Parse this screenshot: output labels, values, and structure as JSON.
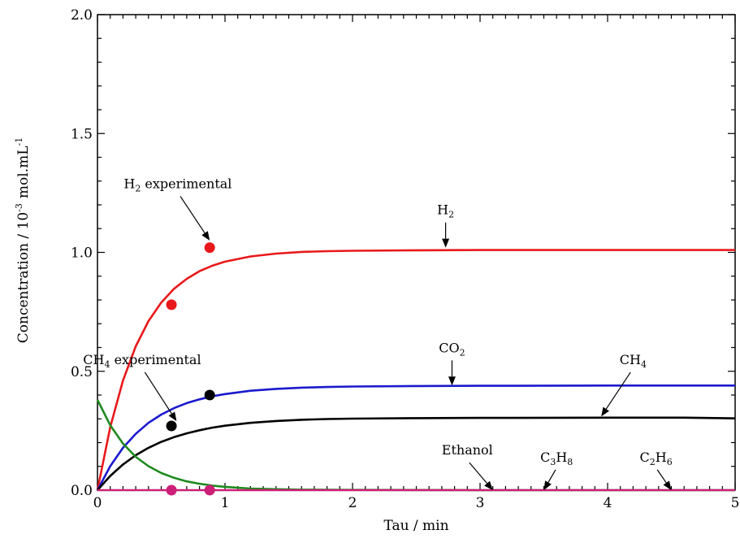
{
  "chart_data": {
    "type": "line",
    "xlabel": "Tau / min",
    "ylabel": {
      "main": "Concentration / 10",
      "sup": "-3",
      "unit": "mol.mL",
      "unit_sup": "-1"
    },
    "xlim": [
      0,
      5
    ],
    "ylim": [
      0,
      2.0
    ],
    "xticks": [
      0,
      1,
      2,
      3,
      4,
      5
    ],
    "xtick_labels": [
      "0",
      "1",
      "2",
      "3",
      "4",
      "5"
    ],
    "yticks": [
      0,
      0.5,
      1.0,
      1.5,
      2.0
    ],
    "ytick_labels": [
      "0.0",
      "0.5",
      "1.0",
      "1.5",
      "2.0"
    ],
    "grid": false,
    "series": [
      {
        "color": "#e8191b",
        "points": [
          [
            0,
            0
          ],
          [
            0.1,
            0.265
          ],
          [
            0.2,
            0.461
          ],
          [
            0.3,
            0.605
          ],
          [
            0.4,
            0.711
          ],
          [
            0.5,
            0.789
          ],
          [
            0.6,
            0.847
          ],
          [
            0.7,
            0.889
          ],
          [
            0.8,
            0.921
          ],
          [
            0.9,
            0.944
          ],
          [
            1.0,
            0.961
          ],
          [
            1.2,
            0.983
          ],
          [
            1.4,
            0.995
          ],
          [
            1.6,
            1.002
          ],
          [
            1.8,
            1.005
          ],
          [
            2.0,
            1.007
          ],
          [
            2.5,
            1.009
          ],
          [
            3.0,
            1.01
          ],
          [
            4.0,
            1.01
          ],
          [
            5.0,
            1.01
          ]
        ]
      },
      {
        "color": "#1a1acd",
        "points": [
          [
            0,
            0
          ],
          [
            0.1,
            0.101
          ],
          [
            0.2,
            0.178
          ],
          [
            0.3,
            0.237
          ],
          [
            0.4,
            0.283
          ],
          [
            0.5,
            0.318
          ],
          [
            0.6,
            0.345
          ],
          [
            0.7,
            0.366
          ],
          [
            0.8,
            0.382
          ],
          [
            0.9,
            0.395
          ],
          [
            1.0,
            0.404
          ],
          [
            1.2,
            0.418
          ],
          [
            1.4,
            0.426
          ],
          [
            1.6,
            0.431
          ],
          [
            1.8,
            0.434
          ],
          [
            2.0,
            0.436
          ],
          [
            2.5,
            0.438
          ],
          [
            3.0,
            0.439
          ],
          [
            4.0,
            0.44
          ],
          [
            5.0,
            0.44
          ]
        ]
      },
      {
        "color": "#000000",
        "points": [
          [
            0,
            0
          ],
          [
            0.1,
            0.06
          ],
          [
            0.2,
            0.108
          ],
          [
            0.3,
            0.147
          ],
          [
            0.4,
            0.178
          ],
          [
            0.5,
            0.203
          ],
          [
            0.6,
            0.223
          ],
          [
            0.7,
            0.239
          ],
          [
            0.8,
            0.252
          ],
          [
            0.9,
            0.263
          ],
          [
            1.0,
            0.271
          ],
          [
            1.2,
            0.283
          ],
          [
            1.4,
            0.291
          ],
          [
            1.6,
            0.296
          ],
          [
            1.8,
            0.299
          ],
          [
            2.0,
            0.301
          ],
          [
            2.5,
            0.303
          ],
          [
            3.0,
            0.304
          ],
          [
            4.0,
            0.305
          ],
          [
            4.6,
            0.305
          ],
          [
            5.0,
            0.302
          ]
        ]
      },
      {
        "color": "#1f8a1f",
        "points": [
          [
            0,
            0.38
          ],
          [
            0.1,
            0.273
          ],
          [
            0.2,
            0.196
          ],
          [
            0.3,
            0.14
          ],
          [
            0.4,
            0.101
          ],
          [
            0.5,
            0.072
          ],
          [
            0.6,
            0.052
          ],
          [
            0.7,
            0.037
          ],
          [
            0.8,
            0.027
          ],
          [
            0.9,
            0.019
          ],
          [
            1.0,
            0.014
          ],
          [
            1.2,
            0.007
          ],
          [
            1.4,
            0.004
          ],
          [
            1.6,
            0.002
          ],
          [
            2.0,
            0.001
          ],
          [
            3.0,
            0
          ],
          [
            5.0,
            0
          ]
        ]
      },
      {
        "color": "#cc1f77",
        "points": [
          [
            0,
            0
          ],
          [
            5,
            0
          ]
        ]
      }
    ],
    "experimental_points": [
      {
        "x": 0.58,
        "y": 0.78,
        "color": "#e8191b"
      },
      {
        "x": 0.88,
        "y": 1.02,
        "color": "#e8191b"
      },
      {
        "x": 0.58,
        "y": 0.27,
        "color": "#000000"
      },
      {
        "x": 0.88,
        "y": 0.4,
        "color": "#000000"
      },
      {
        "x": 0.58,
        "y": 0.0,
        "color": "#cc1f77"
      },
      {
        "x": 0.88,
        "y": 0.0,
        "color": "#cc1f77"
      }
    ],
    "annotations": [
      {
        "id": "h2-exp",
        "text": "H",
        "sub": "2",
        "rest": " experimental",
        "label_x": 0.63,
        "label_y": 1.27,
        "target_x": 0.88,
        "target_y": 1.05
      },
      {
        "id": "h2",
        "text": "H",
        "sub": "2",
        "rest": "",
        "label_x": 2.73,
        "label_y": 1.16,
        "target_x": 2.73,
        "target_y": 1.02
      },
      {
        "id": "ch4-exp",
        "text": "CH",
        "sub": "4",
        "rest": " experimental",
        "label_x": 0.35,
        "label_y": 0.53,
        "target_x": 0.62,
        "target_y": 0.29
      },
      {
        "id": "co2",
        "text": "CO",
        "sub": "2",
        "rest": "",
        "label_x": 2.78,
        "label_y": 0.58,
        "target_x": 2.78,
        "target_y": 0.44
      },
      {
        "id": "ch4",
        "text": "CH",
        "sub": "4",
        "rest": "",
        "label_x": 4.2,
        "label_y": 0.53,
        "target_x": 3.95,
        "target_y": 0.31
      },
      {
        "id": "ethanol",
        "text": "Ethanol",
        "sub": "",
        "rest": "",
        "label_x": 2.9,
        "label_y": 0.15,
        "target_x": 3.1,
        "target_y": 0.0
      },
      {
        "id": "c3h8",
        "text": "C",
        "sub": "3",
        "rest": "",
        "text2": "H",
        "sub2": "8",
        "label_x": 3.6,
        "label_y": 0.12,
        "target_x": 3.5,
        "target_y": 0.0
      },
      {
        "id": "c2h6",
        "text": "C",
        "sub": "2",
        "rest": "",
        "text2": "H",
        "sub2": "6",
        "label_x": 4.38,
        "label_y": 0.12,
        "target_x": 4.5,
        "target_y": 0.0
      }
    ]
  }
}
